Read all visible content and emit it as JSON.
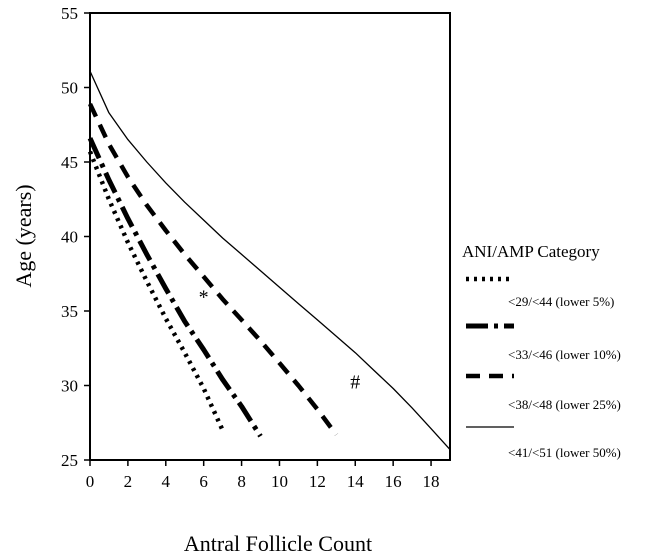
{
  "chart_data": {
    "type": "line",
    "xlabel": "Antral Follicle Count",
    "ylabel": "Age (years)",
    "xlim": [
      0,
      19
    ],
    "ylim": [
      25,
      55
    ],
    "xticks": [
      0,
      2,
      4,
      6,
      8,
      10,
      12,
      14,
      16,
      18
    ],
    "yticks": [
      25,
      30,
      35,
      40,
      45,
      50,
      55
    ],
    "grid": false,
    "legend": {
      "title": "ANI/AMP Category",
      "placement": "right"
    },
    "series": [
      {
        "name": "<29/<44 (lower 5%)",
        "style": "dotted",
        "points": [
          [
            0,
            45.7
          ],
          [
            1,
            42.5
          ],
          [
            2,
            39.6
          ],
          [
            3,
            37.0
          ],
          [
            4,
            34.5
          ],
          [
            5,
            32.2
          ],
          [
            6,
            29.8
          ],
          [
            7,
            27.0
          ]
        ]
      },
      {
        "name": "<33/<46 (lower 10%)",
        "style": "dash-dot",
        "points": [
          [
            0,
            46.6
          ],
          [
            1,
            43.8
          ],
          [
            2,
            41.2
          ],
          [
            3,
            38.8
          ],
          [
            4,
            36.5
          ],
          [
            5,
            34.3
          ],
          [
            6,
            32.4
          ],
          [
            7,
            30.4
          ],
          [
            8,
            28.6
          ],
          [
            9,
            26.6
          ]
        ]
      },
      {
        "name": "<38/<48 (lower 25%)",
        "style": "dashed",
        "points": [
          [
            0,
            48.9
          ],
          [
            1,
            46.2
          ],
          [
            2,
            44.0
          ],
          [
            3,
            42.1
          ],
          [
            4,
            40.4
          ],
          [
            5,
            38.8
          ],
          [
            6,
            37.3
          ],
          [
            7,
            35.8
          ],
          [
            8,
            34.4
          ],
          [
            9,
            33.0
          ],
          [
            10,
            31.5
          ],
          [
            11,
            30.0
          ],
          [
            12,
            28.4
          ],
          [
            13,
            26.7
          ]
        ]
      },
      {
        "name": "<41/<51 (lower 50%)",
        "style": "solid",
        "points": [
          [
            0,
            51.1
          ],
          [
            1,
            48.3
          ],
          [
            2,
            46.5
          ],
          [
            3,
            45.0
          ],
          [
            4,
            43.6
          ],
          [
            5,
            42.3
          ],
          [
            6,
            41.1
          ],
          [
            7,
            39.9
          ],
          [
            8,
            38.8
          ],
          [
            9,
            37.7
          ],
          [
            10,
            36.6
          ],
          [
            11,
            35.5
          ],
          [
            12,
            34.4
          ],
          [
            13,
            33.3
          ],
          [
            14,
            32.2
          ],
          [
            15,
            31.0
          ],
          [
            16,
            29.8
          ],
          [
            17,
            28.5
          ],
          [
            18,
            27.1
          ],
          [
            19,
            25.7
          ]
        ]
      }
    ],
    "annotations": [
      {
        "text": "*",
        "x": 6.0,
        "y": 35.5
      },
      {
        "text": "#",
        "x": 14.0,
        "y": 29.8
      }
    ]
  }
}
